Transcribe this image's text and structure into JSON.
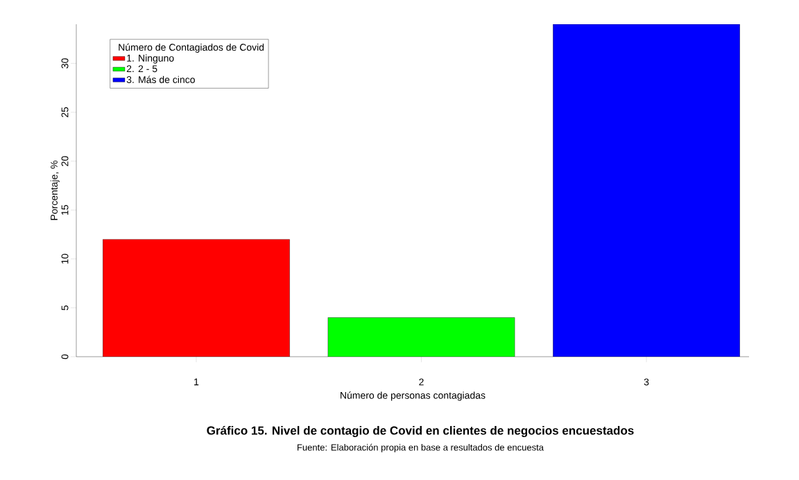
{
  "chart_data": {
    "type": "bar",
    "title": "**Gráfico 15. Nivel de contagio de Covid en clientes de negocios encuestados**",
    "annotations": [
      "Fuente: Elaboración propia en base a resultados de encuesta"
    ],
    "xlabel": "Número de personas contagiadas",
    "ylabel": "Porcentaje, %",
    "legend_title": "Número de Contagiados de Covid",
    "legend": "top left",
    "categories": [
      "1",
      "2",
      "3"
    ],
    "series": [
      {
        "name": "1. Ninguno",
        "color": "#ff0000",
        "values": [
          12,
          null,
          null
        ]
      },
      {
        "name": "2. 2 - 5",
        "color": "#00ff00",
        "values": [
          null,
          4,
          null
        ]
      },
      {
        "name": "3. Más de cinco",
        "color": "#0000ff",
        "values": [
          null,
          null,
          34
        ]
      }
    ],
    "stacked": false,
    "ylim": [
      0,
      34
    ],
    "yticks": [
      0,
      5,
      10,
      15,
      20,
      25,
      30
    ],
    "grid": false
  }
}
